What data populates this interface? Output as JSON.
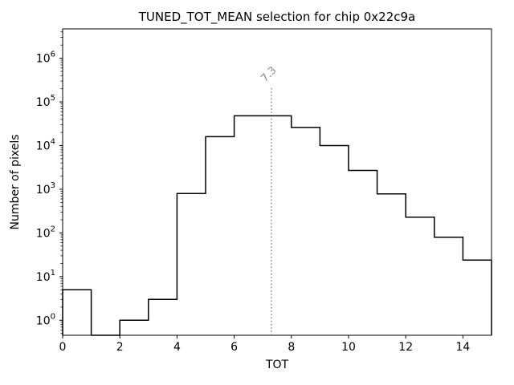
{
  "window": {
    "background": "#ffffff"
  },
  "chart_data": {
    "type": "bar",
    "subtype": "step-histogram",
    "title": "TUNED_TOT_MEAN selection for chip 0x22c9a",
    "xlabel": "TOT",
    "ylabel": "Number of pixels",
    "xlim": [
      0,
      15
    ],
    "ylim": [
      0.454,
      4700000
    ],
    "yscale": "log",
    "grid": false,
    "legend": "none",
    "x_ticks": [
      0,
      2,
      4,
      6,
      8,
      10,
      12,
      14
    ],
    "y_tick_exponents": [
      0,
      1,
      2,
      3,
      4,
      5,
      6
    ],
    "bin_edges": [
      0,
      1,
      2,
      3,
      4,
      5,
      6,
      7,
      8,
      9,
      10,
      11,
      12,
      13,
      14,
      15
    ],
    "counts": [
      5,
      0,
      1,
      3,
      800,
      16000,
      48000,
      48000,
      26000,
      10000,
      2700,
      780,
      230,
      80,
      24
    ],
    "line_color": "#000000",
    "axes_color": "#000000",
    "vline": {
      "x": 7.3,
      "label": "7.3",
      "color": "#7f7f7f",
      "style": "dotted"
    }
  }
}
